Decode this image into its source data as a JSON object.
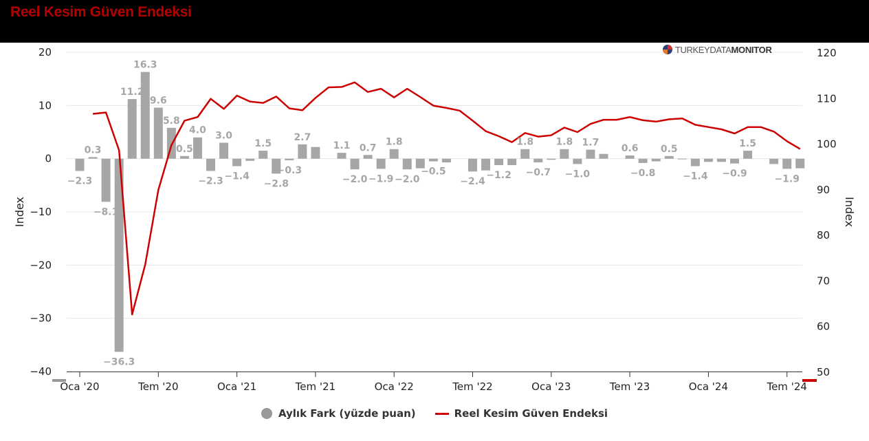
{
  "header": {
    "title": "Reel Kesim Güven Endeksi"
  },
  "brand": {
    "light": "TURKEY",
    "mid": "DATA",
    "bold": "MONITOR"
  },
  "colors": {
    "bar": "#a6a6a6",
    "label": "#a6a6a6",
    "line": "#cc0000",
    "header_bg": "#000000",
    "title": "#b30000",
    "grid": "#e6e6e6"
  },
  "chart_data": {
    "type": "bar+line",
    "x": [
      "2020-01",
      "2020-02",
      "2020-03",
      "2020-04",
      "2020-05",
      "2020-06",
      "2020-07",
      "2020-08",
      "2020-09",
      "2020-10",
      "2020-11",
      "2020-12",
      "2021-01",
      "2021-02",
      "2021-03",
      "2021-04",
      "2021-05",
      "2021-06",
      "2021-07",
      "2021-08",
      "2021-09",
      "2021-10",
      "2021-11",
      "2021-12",
      "2022-01",
      "2022-02",
      "2022-03",
      "2022-04",
      "2022-05",
      "2022-06",
      "2022-07",
      "2022-08",
      "2022-09",
      "2022-10",
      "2022-11",
      "2022-12",
      "2023-01",
      "2023-02",
      "2023-03",
      "2023-04",
      "2023-05",
      "2023-06",
      "2023-07",
      "2023-08",
      "2023-09",
      "2023-10",
      "2023-11",
      "2023-12",
      "2024-01",
      "2024-02",
      "2024-03",
      "2024-04",
      "2024-05",
      "2024-06",
      "2024-07",
      "2024-08",
      "2024-09"
    ],
    "x_ticks": [
      "Oca '20",
      "Tem '20",
      "Oca '21",
      "Tem '21",
      "Oca '22",
      "Tem '22",
      "Oca '23",
      "Tem '23",
      "Oca '24",
      "Tem '24"
    ],
    "series": [
      {
        "name": "Aylık Fark (yüzde puan)",
        "type": "bar",
        "axis": "left",
        "values": [
          -2.3,
          0.3,
          -8.1,
          -36.3,
          11.2,
          16.3,
          9.6,
          5.8,
          0.5,
          4.0,
          -2.3,
          3.0,
          -1.4,
          -0.4,
          1.5,
          -2.8,
          -0.3,
          2.7,
          2.2,
          null,
          1.1,
          -2.0,
          0.7,
          -1.9,
          1.8,
          -2.0,
          -1.8,
          -0.5,
          -0.7,
          null,
          -2.4,
          -2.2,
          -1.2,
          -1.2,
          1.8,
          -0.7,
          -0.2,
          1.8,
          -1.0,
          1.7,
          0.9,
          null,
          0.6,
          -0.8,
          -0.5,
          0.5,
          -0.1,
          -1.4,
          -0.6,
          -0.6,
          -0.9,
          1.5,
          null,
          -1.0,
          -1.9,
          -1.8,
          null
        ],
        "labels": [
          "−2.3",
          "0.3",
          "−8.1",
          "−36.3",
          "11.2",
          "16.3",
          "9.6",
          "5.8",
          "0.5",
          "4.0",
          "−2.3",
          "3.0",
          "−1.4",
          "",
          "1.5",
          "−2.8",
          "−0.3",
          "2.7",
          "",
          "",
          "1.1",
          "−2.0",
          "0.7",
          "−1.9",
          "1.8",
          "−2.0",
          "",
          "−0.5",
          "",
          "",
          "−2.4",
          "",
          "−1.2",
          "",
          "1.8",
          "−0.7",
          "",
          "1.8",
          "−1.0",
          "1.7",
          "",
          "",
          "0.6",
          "−0.8",
          "",
          "0.5",
          "",
          "−1.4",
          "",
          "",
          "−0.9",
          "1.5",
          "",
          "",
          "−1.9",
          "",
          ""
        ]
      },
      {
        "name": "Reel Kesim Güven Endeksi",
        "type": "line",
        "axis": "right",
        "values": [
          null,
          106.5,
          106.8,
          98.5,
          62.5,
          73.5,
          89.8,
          99.6,
          105.0,
          105.8,
          109.8,
          107.6,
          110.5,
          109.2,
          108.9,
          110.3,
          107.7,
          107.3,
          110.0,
          112.3,
          112.4,
          113.4,
          111.3,
          112.0,
          110.1,
          112.0,
          110.2,
          108.3,
          107.8,
          107.2,
          105.0,
          102.7,
          101.6,
          100.3,
          102.3,
          101.5,
          101.8,
          103.5,
          102.5,
          104.3,
          105.2,
          105.2,
          105.8,
          105.1,
          104.8,
          105.3,
          105.5,
          104.1,
          103.6,
          103.1,
          102.2,
          103.6,
          103.6,
          102.6,
          100.5,
          98.8,
          null
        ]
      }
    ],
    "left_axis": {
      "label": "Index",
      "min": -40,
      "max": 20,
      "ticks": [
        "20",
        "10",
        "0",
        "−10",
        "−20",
        "−30",
        "−40"
      ]
    },
    "right_axis": {
      "label": "Index",
      "min": 50,
      "max": 120,
      "ticks": [
        "120",
        "110",
        "100",
        "90",
        "80",
        "70",
        "60",
        "50"
      ]
    },
    "grid": true,
    "legend_position": "bottom-center"
  }
}
